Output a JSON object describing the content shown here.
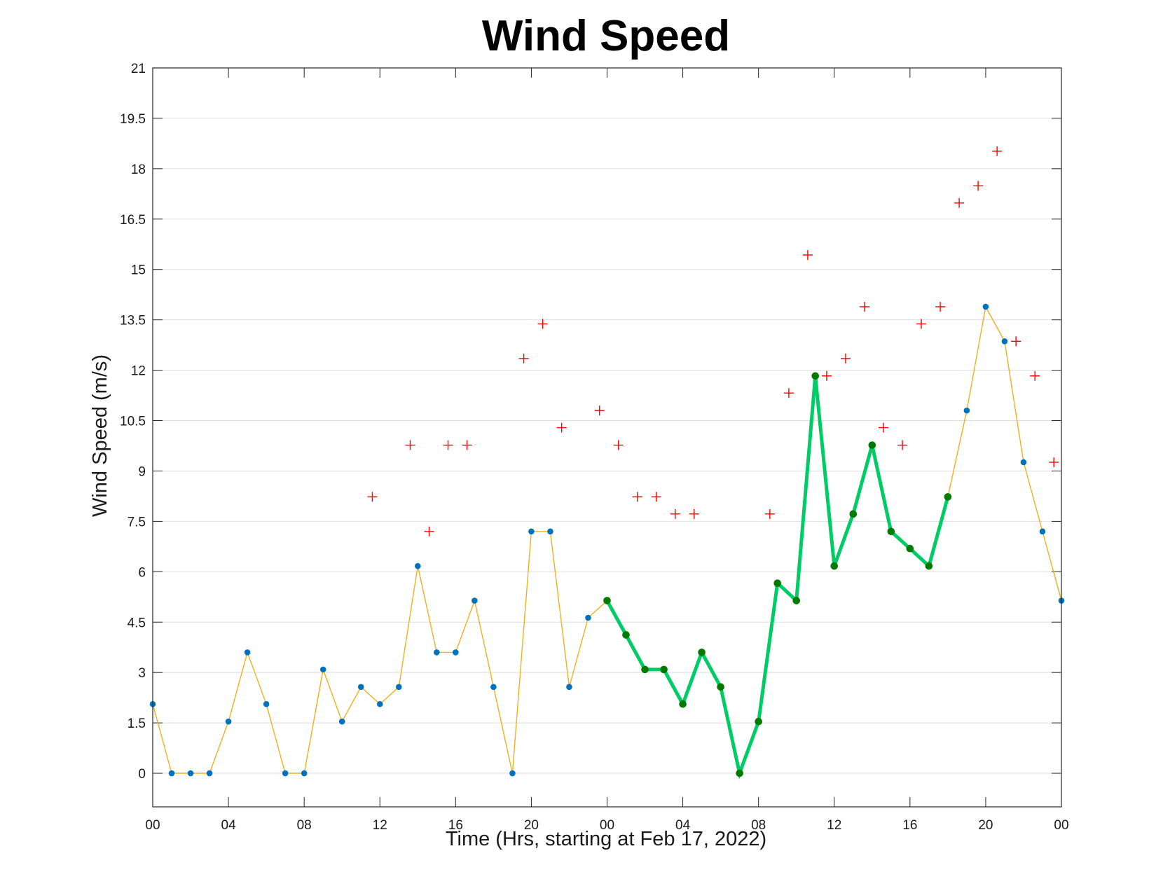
{
  "chart_data": {
    "type": "line",
    "title": "Wind Speed",
    "xlabel": "Time (Hrs, starting at Feb 17, 2022)",
    "ylabel": "Wind Speed (m/s)",
    "xlim": [
      0,
      48
    ],
    "ylim": [
      -1,
      21
    ],
    "x_ticks": [
      0,
      4,
      8,
      12,
      16,
      20,
      24,
      28,
      32,
      36,
      40,
      44,
      48
    ],
    "x_tick_labels": [
      "00",
      "04",
      "08",
      "12",
      "16",
      "20",
      "00",
      "04",
      "08",
      "12",
      "16",
      "20",
      "00"
    ],
    "y_ticks": [
      0,
      1.5,
      3,
      4.5,
      6,
      7.5,
      9,
      10.5,
      12,
      13.5,
      15,
      16.5,
      18,
      19.5,
      21
    ],
    "y_tick_labels": [
      "0",
      "1.5",
      "3",
      "4.5",
      "6",
      "7.5",
      "9",
      "10.5",
      "12",
      "13.5",
      "15",
      "16.5",
      "18",
      "19.5",
      "21"
    ],
    "grid": "horizontal",
    "colors": {
      "wind_line": "#EDB120",
      "wind_marker": "#0072BD",
      "highlight_line": "#00CC66",
      "highlight_marker": "#007A00",
      "gust_marker": "#FF0000"
    },
    "series": [
      {
        "style": "thin-line-dot-markers",
        "x": [
          0,
          1,
          2,
          3,
          4,
          5,
          6,
          7,
          8,
          9,
          10,
          11,
          12,
          13,
          14,
          15,
          16,
          17,
          18,
          19,
          20,
          21,
          22,
          23,
          24,
          25,
          26,
          27,
          28,
          29,
          30,
          31,
          32,
          33,
          34,
          35,
          36,
          37,
          38,
          39,
          40,
          41,
          42,
          43,
          44,
          45,
          46,
          47,
          48
        ],
        "values": [
          2.06,
          0,
          0,
          0,
          1.54,
          3.6,
          2.06,
          0,
          0,
          3.09,
          1.54,
          2.57,
          2.06,
          2.57,
          6.17,
          3.6,
          3.6,
          5.14,
          2.57,
          0,
          7.2,
          7.2,
          2.57,
          4.63,
          5.14,
          4.12,
          3.09,
          3.09,
          2.06,
          3.6,
          2.57,
          0,
          1.54,
          5.66,
          5.14,
          11.83,
          6.17,
          7.72,
          9.77,
          7.2,
          6.69,
          6.17,
          8.23,
          10.8,
          13.89,
          12.86,
          9.26,
          7.2,
          5.14
        ]
      },
      {
        "style": "thick-line-dot-markers",
        "x": [
          24,
          25,
          26,
          27,
          28,
          29,
          30,
          31,
          32,
          33,
          34,
          35,
          36,
          37,
          38,
          39,
          40,
          41,
          42
        ],
        "values": [
          5.14,
          4.12,
          3.09,
          3.09,
          2.06,
          3.6,
          2.57,
          0,
          1.54,
          5.66,
          5.14,
          11.83,
          6.17,
          7.72,
          9.77,
          7.2,
          6.69,
          6.17,
          8.23
        ]
      },
      {
        "style": "plus-markers",
        "x": [
          11.6,
          13.6,
          14.6,
          15.6,
          16.6,
          19.6,
          20.6,
          21.6,
          23.6,
          24.6,
          25.6,
          26.6,
          27.6,
          28.6,
          32.6,
          33.6,
          34.6,
          35.6,
          36.6,
          37.6,
          38.6,
          39.6,
          40.6,
          41.6,
          42.6,
          43.6,
          44.6,
          45.6,
          46.6,
          47.6
        ],
        "values": [
          8.23,
          9.77,
          7.2,
          9.77,
          9.77,
          12.35,
          13.38,
          10.29,
          10.8,
          9.77,
          8.23,
          8.23,
          7.72,
          7.72,
          7.72,
          11.32,
          15.43,
          11.83,
          12.35,
          13.89,
          10.29,
          9.77,
          13.38,
          13.89,
          16.98,
          17.49,
          18.52,
          12.86,
          11.83,
          9.26
        ]
      }
    ]
  }
}
